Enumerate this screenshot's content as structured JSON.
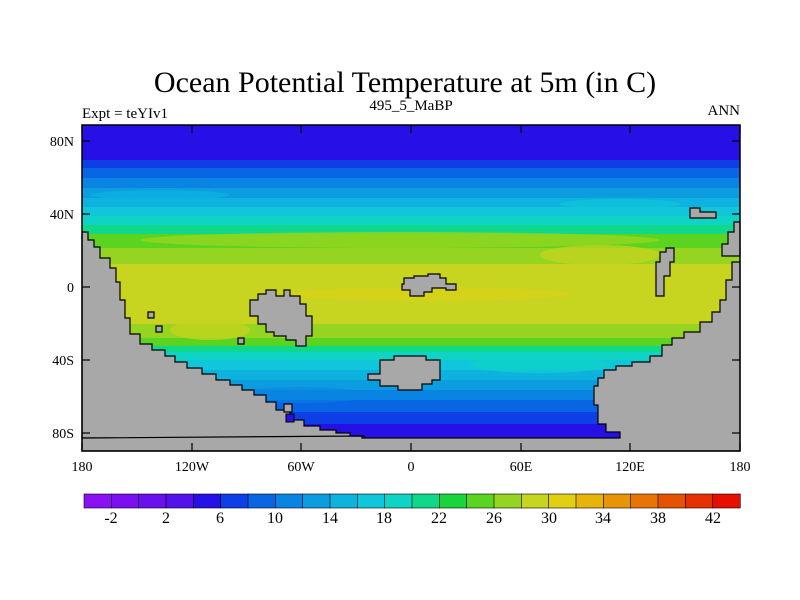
{
  "map": {
    "title": "Ocean Potential Temperature at 5m (in C)",
    "left_subtitle": "Expt = teYIv1",
    "center_subtitle": "495_5_MaBP",
    "right_subtitle": "ANN",
    "lat_labels": [
      "80N",
      "40N",
      "0",
      "40S",
      "80S"
    ],
    "lon_labels": [
      "180",
      "120W",
      "60W",
      "0",
      "60E",
      "120E",
      "180"
    ],
    "land_color": "#a8a8a8"
  },
  "colorbar": {
    "labels": [
      "-2",
      "2",
      "6",
      "10",
      "14",
      "18",
      "22",
      "26",
      "30",
      "34",
      "38",
      "42"
    ],
    "colors": [
      "#8a11f2",
      "#7b0fef",
      "#6a10ec",
      "#5511ea",
      "#2610e6",
      "#0d3ee6",
      "#0866e4",
      "#0a84e2",
      "#0c9de0",
      "#0db3de",
      "#0fc6db",
      "#0fd3c4",
      "#0fd88a",
      "#1ad43c",
      "#5ad420",
      "#95d421",
      "#c7d420",
      "#e2cf12",
      "#e7b40a",
      "#e69508",
      "#e67505",
      "#e65300",
      "#e63100",
      "#e60f00"
    ]
  },
  "chart_data": {
    "type": "heatmap",
    "title": "Ocean Potential Temperature at 5m (in C)",
    "variable": "Ocean Potential Temperature at 5m",
    "units": "C",
    "experiment": "teYIv1",
    "period": "495_5_MaBP",
    "season": "ANN",
    "xlim": [
      -180,
      180
    ],
    "ylim": [
      -90,
      90
    ],
    "levels": [
      -2,
      2,
      6,
      10,
      14,
      18,
      22,
      26,
      30,
      34,
      38,
      42
    ],
    "zonal_mean_estimate": {
      "lat": [
        85,
        75,
        65,
        55,
        45,
        35,
        25,
        15,
        5,
        -5,
        -15,
        -25,
        -35,
        -45,
        -55,
        -65,
        -75,
        -85
      ],
      "value": [
        2,
        8,
        14,
        18,
        21,
        24,
        27,
        30,
        31,
        31,
        31,
        30,
        27,
        22,
        16,
        10,
        6,
        4
      ]
    }
  }
}
